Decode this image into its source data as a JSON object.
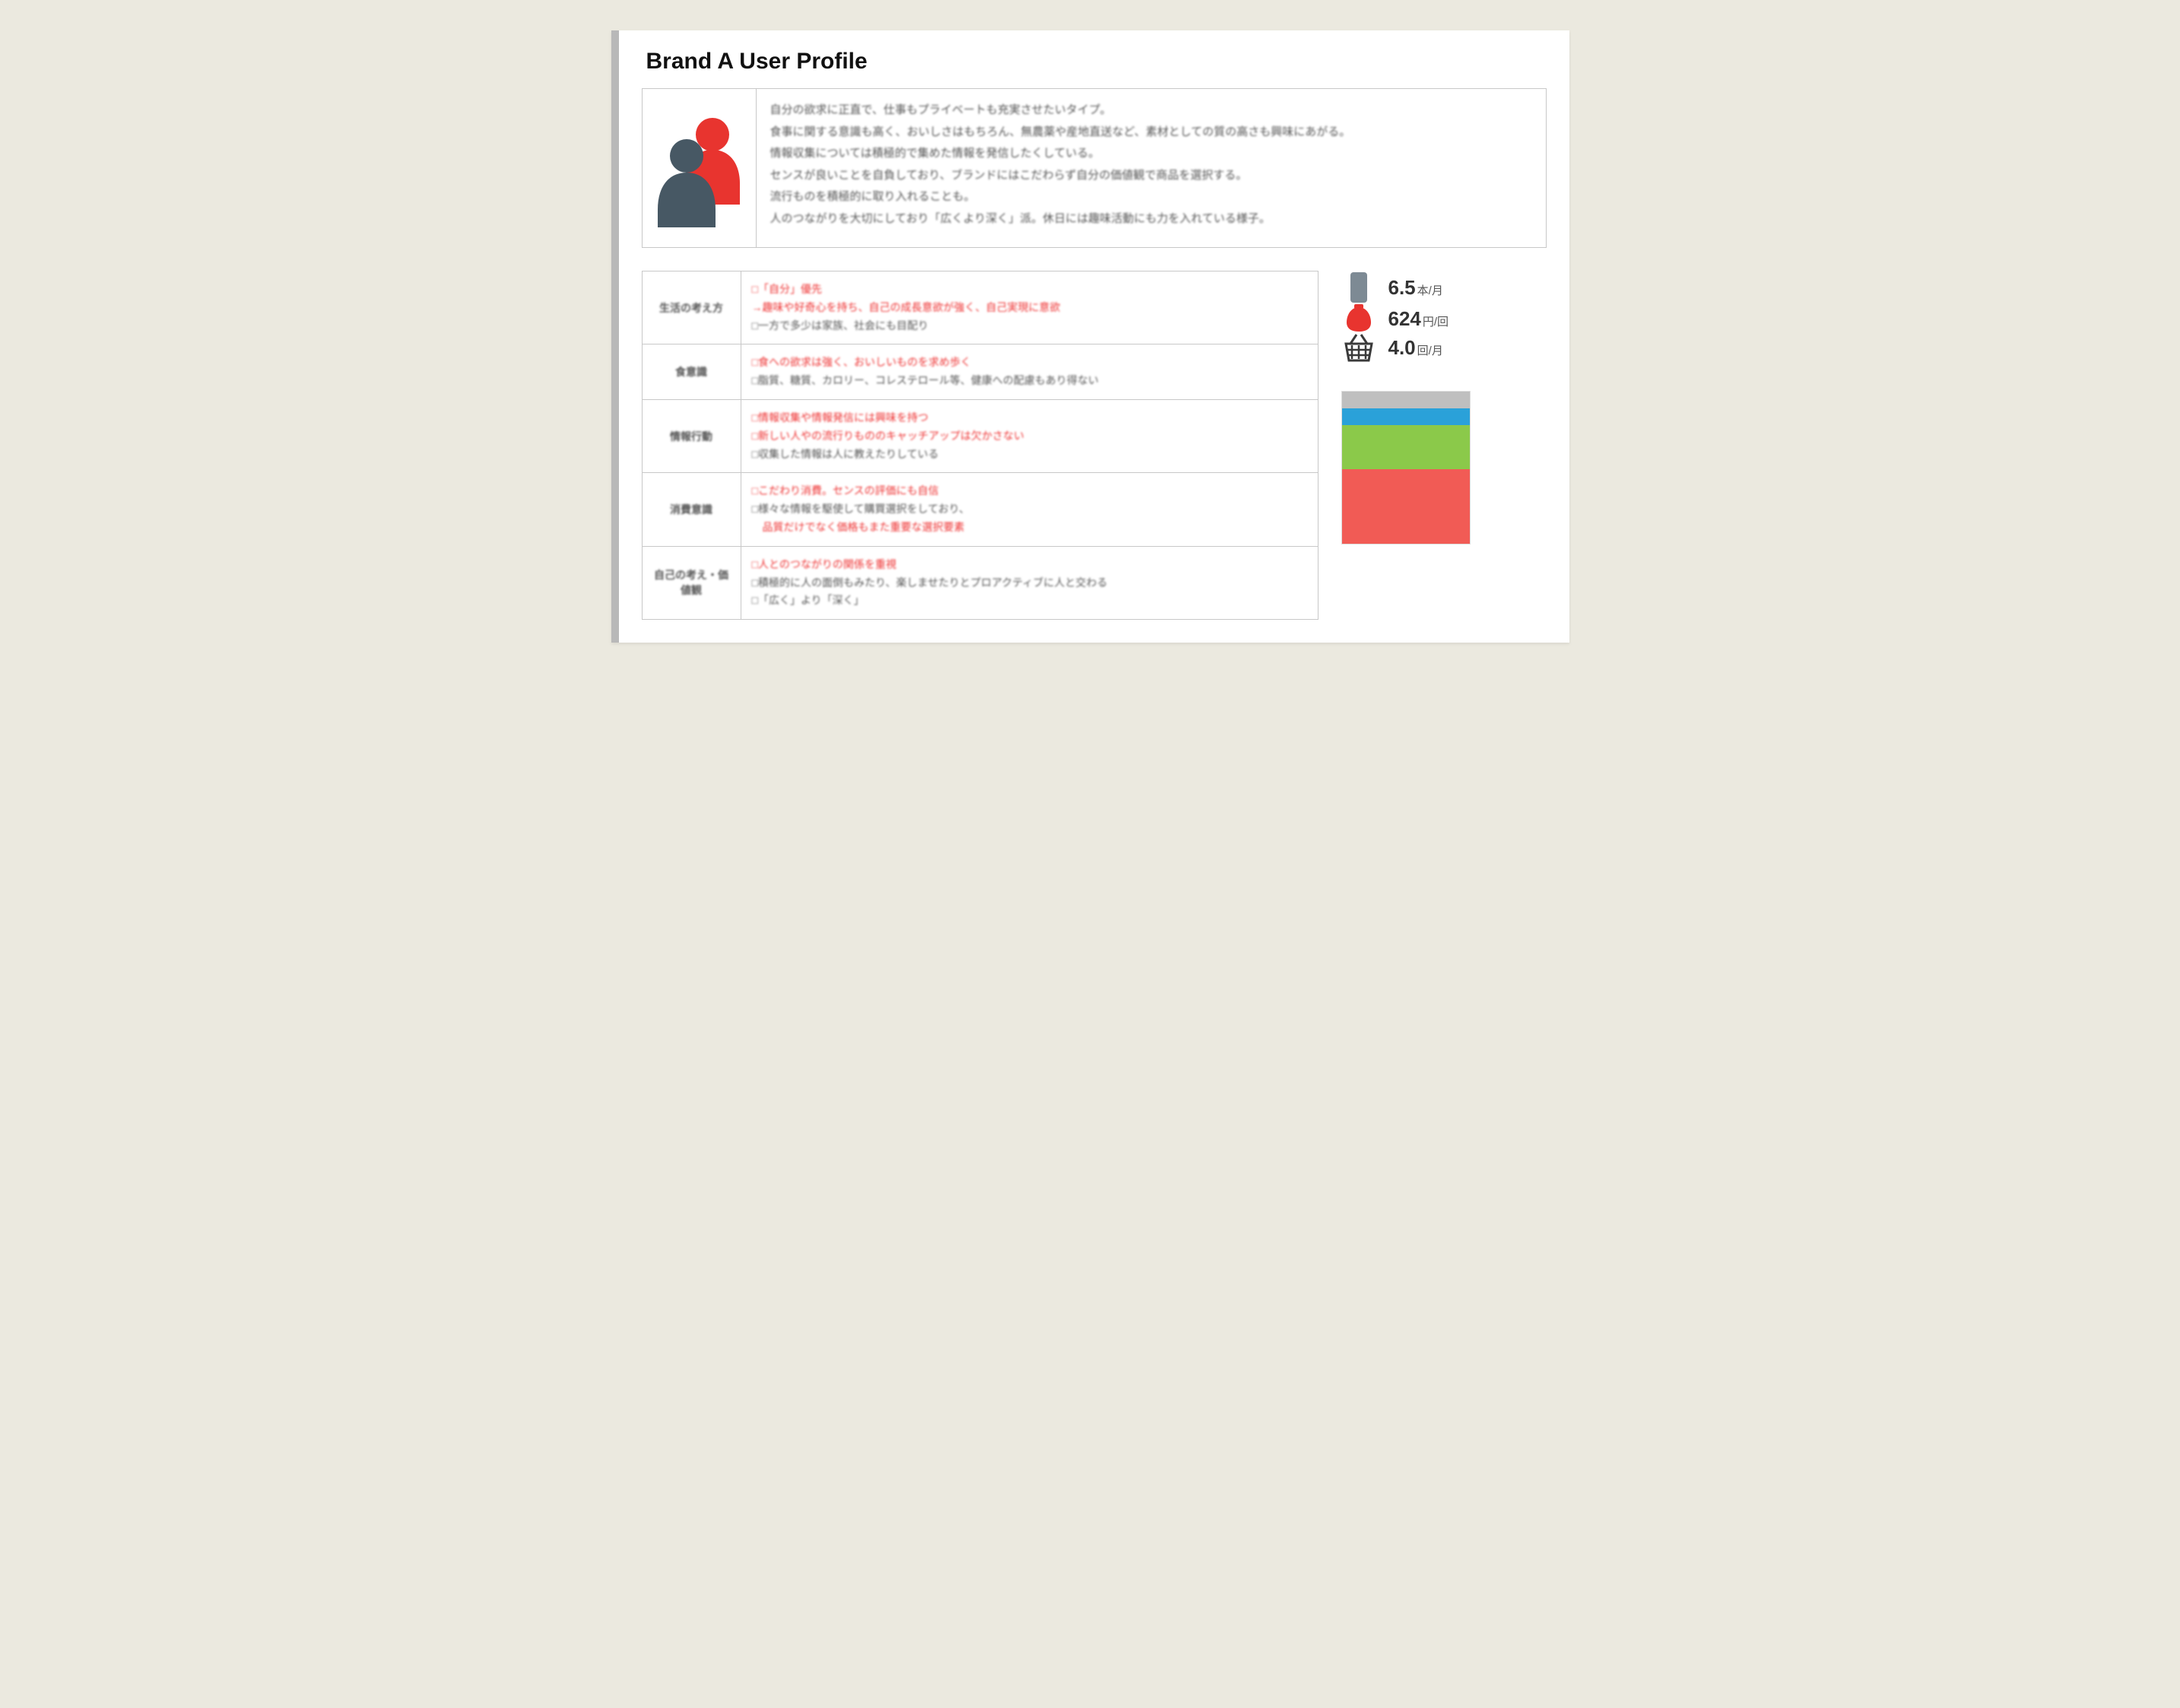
{
  "title": "Brand A User Profile",
  "colors": {
    "page_bg": "#ebe9df",
    "card_bg": "#ffffff",
    "card_accent": "#b8b8b8",
    "border": "#c8c8c8",
    "text": "#555555",
    "highlight": "#e23333",
    "person_front": "#475864",
    "person_back": "#e8342f"
  },
  "summary_lines": [
    "自分の欲求に正直で、仕事もプライベートも充実させたいタイプ。",
    "食事に関する意識も高く、おいしさはもちろん、無農薬や産地直送など、素材としての質の高さも興味にあがる。",
    "情報収集については積極的で集めた情報を発信したくしている。",
    "センスが良いことを自負しており、ブランドにはこだわらず自分の価値観で商品を選択する。",
    "流行ものを積極的に取り入れることも。",
    "人のつながりを大切にしており「広くより深く」派。休日には趣味活動にも力を入れている様子。"
  ],
  "attributes": [
    {
      "label": "生活の考え方",
      "lines": [
        {
          "t": "□「自分」優先",
          "hl": true
        },
        {
          "t": "→趣味や好奇心を持ち、自己の成長意欲が強く、自己実現に意欲",
          "hl": true
        },
        {
          "t": "□一方で多少は家族、社会にも目配り",
          "hl": false
        }
      ]
    },
    {
      "label": "食意識",
      "lines": [
        {
          "t": "□食への欲求は強く、おいしいものを求め歩く",
          "hl": true
        },
        {
          "t": "□脂質、糖質、カロリー、コレステロール等、健康への配慮もあり得ない",
          "hl": false
        }
      ]
    },
    {
      "label": "情報行動",
      "lines": [
        {
          "t": "□情報収集や情報発信には興味を持つ",
          "hl": true
        },
        {
          "t": "□新しい人やの流行りもののキャッチアップは欠かさない",
          "hl": true
        },
        {
          "t": "□収集した情報は人に教えたりしている",
          "hl": false
        }
      ]
    },
    {
      "label": "消費意識",
      "lines": [
        {
          "t": "□こだわり消費。センスの評価にも自信",
          "hl": true
        },
        {
          "t": "□様々な情報を駆使して購買選択をしており、",
          "hl": false
        },
        {
          "t": "　品質だけでなく価格もまた重要な選択要素",
          "hl": true
        }
      ]
    },
    {
      "label": "自己の考え・価値観",
      "lines": [
        {
          "t": "□人とのつながりの関係を重視",
          "hl": true
        },
        {
          "t": "□積極的に人の面倒もみたり、楽しませたりとプロアクティブに人と交わる",
          "hl": false
        },
        {
          "t": "□「広く」より「深く」",
          "hl": false
        }
      ]
    }
  ],
  "metrics": [
    {
      "icon": "phone",
      "num": "6.5",
      "unit": "本/月",
      "color": "#7d8a94"
    },
    {
      "icon": "pouch",
      "num": "624",
      "unit": "円/回",
      "color": "#e8342f"
    },
    {
      "icon": "basket",
      "num": "4.0",
      "unit": "回/月",
      "color": "#3a3a3a"
    }
  ],
  "stack_chart": {
    "segments": [
      {
        "color": "#bfbfbf",
        "height": 22
      },
      {
        "color": "#2aa1d9",
        "height": 22
      },
      {
        "color": "#8bc94a",
        "height": 58
      },
      {
        "color": "#f15b55",
        "height": 98
      }
    ]
  }
}
